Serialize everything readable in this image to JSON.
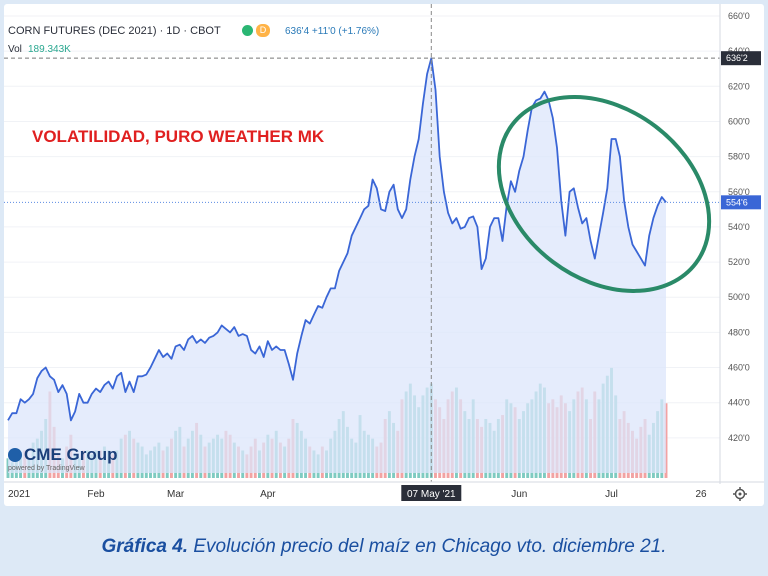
{
  "header": {
    "symbol": "CORN FUTURES (DEC 2021) · 1D · CBOT",
    "price_change": "636'4 +11'0 (+1.76%)",
    "dot_label": "D",
    "vol_label": "Vol",
    "vol_value": "189.343K"
  },
  "annotation": "VOLATILIDAD, PURO WEATHER MK",
  "brand": {
    "name": "CME Group",
    "powered": "powered by TradingView"
  },
  "caption": {
    "bold": "Gráfica 4.",
    "text": " Evolución precio del maíz en Chicago vto. diciembre 21."
  },
  "colors": {
    "line": "#3a66d6",
    "fill": "#dce6fb",
    "vol_up": "#7fcbc1",
    "vol_down": "#f2a3a3",
    "ellipse": "#2a8a68",
    "annotation": "#e02020",
    "caption": "#1a4fa0"
  },
  "chart_data": {
    "type": "line",
    "title": "CORN FUTURES (DEC 2021) · 1D · CBOT",
    "ylabel": "",
    "ylim": [
      400,
      660
    ],
    "y_ticks": [
      "660'0",
      "640'0",
      "620'0",
      "600'0",
      "580'0",
      "560'0",
      "540'0",
      "520'0",
      "500'0",
      "480'0",
      "460'0",
      "440'0",
      "420'0"
    ],
    "x_ticks": [
      "2021",
      "Feb",
      "Mar",
      "Apr",
      "07 May '21",
      "Jun",
      "Jul",
      "26"
    ],
    "price_badges": {
      "high": "636'2",
      "last": "554'6"
    },
    "series": [
      {
        "values": [
          430,
          434,
          434,
          442,
          440,
          442,
          445,
          454,
          458,
          460,
          455,
          453,
          446,
          450,
          445,
          430,
          435,
          445,
          440,
          440,
          445,
          448,
          446,
          450,
          452,
          448,
          455,
          457,
          446,
          452,
          446,
          455,
          455,
          456,
          460,
          465,
          470,
          466,
          468,
          465,
          472,
          473,
          470,
          476,
          478,
          474,
          476,
          474,
          477,
          478,
          480,
          484,
          482,
          480,
          483,
          478,
          479,
          478,
          470,
          468,
          472,
          466,
          475,
          470,
          472,
          470,
          470,
          462,
          453,
          468,
          478,
          487,
          485,
          490,
          495,
          494,
          500,
          505,
          505,
          515,
          520,
          525,
          535,
          540,
          545,
          550,
          552,
          567,
          562,
          550,
          549,
          560,
          564,
          550,
          545,
          550,
          567,
          580,
          590,
          610,
          627,
          636,
          618,
          580,
          560,
          548,
          542,
          545,
          539,
          540,
          545,
          546,
          540,
          516,
          522,
          540,
          545,
          545,
          532,
          552,
          566,
          560,
          572,
          580,
          595,
          608,
          612,
          613,
          617,
          612,
          602,
          585,
          555,
          535,
          560,
          562,
          551,
          542,
          545,
          532,
          522,
          535,
          548,
          562,
          590,
          590,
          580,
          555,
          540,
          530,
          526,
          522,
          518,
          535,
          545,
          552,
          557,
          554
        ],
        "volume": [
          10,
          8,
          9,
          12,
          14,
          10,
          18,
          20,
          24,
          30,
          44,
          26,
          12,
          10,
          16,
          22,
          12,
          10,
          14,
          14,
          12,
          14,
          14,
          16,
          14,
          12,
          14,
          20,
          22,
          24,
          20,
          18,
          16,
          12,
          14,
          16,
          18,
          14,
          16,
          20,
          24,
          26,
          16,
          20,
          24,
          28,
          22,
          16,
          18,
          20,
          22,
          20,
          24,
          22,
          18,
          16,
          14,
          12,
          16,
          20,
          14,
          18,
          22,
          20,
          24,
          18,
          16,
          20,
          30,
          28,
          24,
          20,
          16,
          14,
          12,
          16,
          14,
          20,
          24,
          30,
          34,
          26,
          20,
          18,
          32,
          24,
          22,
          20,
          16,
          18,
          30,
          34,
          28,
          24,
          40,
          44,
          48,
          42,
          36,
          42,
          46,
          48,
          40,
          36,
          30,
          40,
          44,
          46,
          40,
          34,
          30,
          40,
          30,
          26,
          30,
          28,
          24,
          30,
          32,
          40,
          38,
          36,
          30,
          34,
          38,
          40,
          44,
          48,
          46,
          38,
          40,
          36,
          42,
          38,
          34,
          40,
          44,
          46,
          40,
          30,
          44,
          40,
          48,
          52,
          56,
          42,
          30,
          34,
          28,
          24,
          20,
          26,
          30,
          22,
          28,
          34,
          40,
          38
        ]
      }
    ]
  }
}
